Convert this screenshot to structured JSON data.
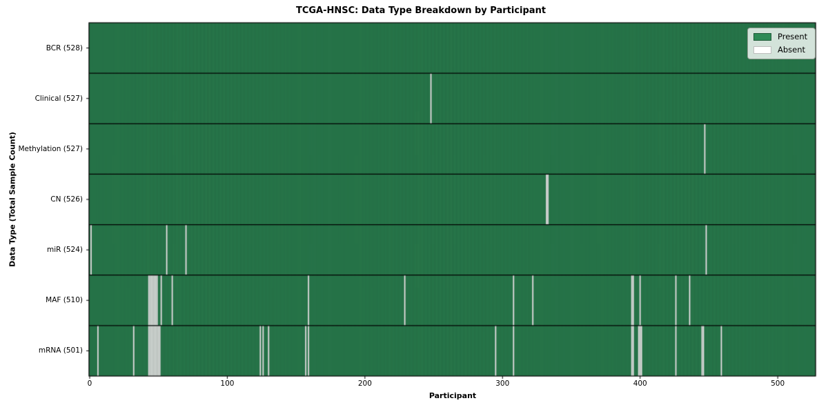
{
  "chart_data": {
    "type": "heatmap",
    "title": "TCGA-HNSC: Data Type Breakdown by Participant",
    "xlabel": "Participant",
    "ylabel": "Data Type (Total Sample Count)",
    "x_ticks": [
      "0",
      "100",
      "200",
      "300",
      "400",
      "500"
    ],
    "x_tick_values": [
      0,
      100,
      200,
      300,
      400,
      500
    ],
    "n_participants": 528,
    "xlim": [
      -0.5,
      527.5
    ],
    "grid": false,
    "colors": {
      "present": "#2e8b57",
      "absent": "#ffffff",
      "bar_edge": "rgba(0,0,0,0.5)",
      "frame": "#000000"
    },
    "legend": {
      "position": "upper right",
      "entries": [
        {
          "label": "Present",
          "color": "#2e8b57"
        },
        {
          "label": "Absent",
          "color": "#ffffff"
        }
      ]
    },
    "rows": [
      {
        "label": "BCR (528)",
        "data_type": "BCR",
        "count": 528,
        "absent_participants": []
      },
      {
        "label": "Clinical (527)",
        "data_type": "Clinical",
        "count": 527,
        "absent_participants": [
          248
        ]
      },
      {
        "label": "Methylation (527)",
        "data_type": "Methylation",
        "count": 527,
        "absent_participants": [
          447
        ]
      },
      {
        "label": "CN (526)",
        "data_type": "CN",
        "count": 526,
        "absent_participants": [
          332,
          333
        ]
      },
      {
        "label": "miR (524)",
        "data_type": "miR",
        "count": 524,
        "absent_participants": [
          1,
          56,
          70,
          448
        ]
      },
      {
        "label": "MAF (510)",
        "data_type": "MAF",
        "count": 510,
        "absent_participants": [
          43,
          44,
          45,
          46,
          47,
          48,
          49,
          52,
          60,
          159,
          229,
          308,
          322,
          394,
          395,
          400,
          426,
          436
        ]
      },
      {
        "label": "mRNA (501)",
        "data_type": "mRNA",
        "count": 501,
        "absent_participants": [
          6,
          32,
          43,
          44,
          45,
          46,
          47,
          48,
          49,
          50,
          51,
          124,
          126,
          130,
          157,
          159,
          295,
          308,
          394,
          395,
          399,
          400,
          401,
          426,
          445,
          446,
          459
        ]
      }
    ]
  }
}
